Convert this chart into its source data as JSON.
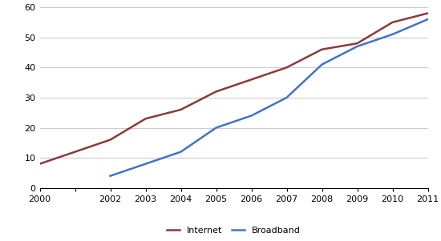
{
  "years": [
    2000,
    2001,
    2002,
    2003,
    2004,
    2005,
    2006,
    2007,
    2008,
    2009,
    2010,
    2011
  ],
  "internet": [
    8,
    12,
    16,
    23,
    26,
    32,
    36,
    40,
    46,
    48,
    55,
    58
  ],
  "broadband": [
    null,
    null,
    4,
    8,
    12,
    20,
    24,
    30,
    41,
    47,
    51,
    56
  ],
  "internet_color": "#8B3A3A",
  "broadband_color": "#4472C4",
  "ylim": [
    0,
    60
  ],
  "yticks": [
    0,
    10,
    20,
    30,
    40,
    50,
    60
  ],
  "xticks": [
    2000,
    2001,
    2002,
    2003,
    2004,
    2005,
    2006,
    2007,
    2008,
    2009,
    2010,
    2011
  ],
  "xtick_labels": [
    "2000",
    "",
    "2002",
    "2003",
    "2004",
    "2005",
    "2006",
    "2007",
    "2008",
    "2009",
    "2010",
    "2011"
  ],
  "legend_internet": "Internet",
  "legend_broadband": "Broadband",
  "background_color": "#ffffff",
  "grid_color": "#cccccc",
  "xlim": [
    2000,
    2011
  ]
}
